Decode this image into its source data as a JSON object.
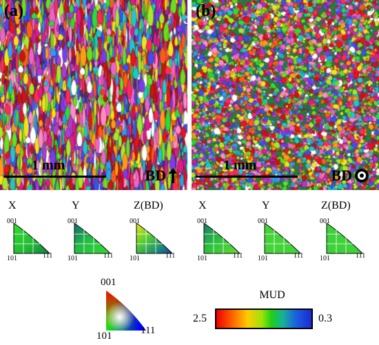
{
  "panels": [
    {
      "label": "(a)",
      "scale": "1 mm",
      "bd": "BD"
    },
    {
      "label": "(b)",
      "scale": "1 mm",
      "bd": "BD"
    }
  ],
  "pole_figures": [
    {
      "title": "X",
      "corner_001": "001",
      "corner_101": "101",
      "corner_111": "111"
    },
    {
      "title": "Y",
      "corner_001": "001",
      "corner_101": "101",
      "corner_111": "111"
    },
    {
      "title": "Z(BD)",
      "corner_001": "001",
      "corner_101": "101",
      "corner_111": "111"
    },
    {
      "title": "X",
      "corner_001": "001",
      "corner_101": "101",
      "corner_111": "111"
    },
    {
      "title": "Y",
      "corner_001": "001",
      "corner_101": "101",
      "corner_111": "111"
    },
    {
      "title": "Z(BD)",
      "corner_001": "001",
      "corner_101": "101",
      "corner_111": "111"
    }
  ],
  "ipf_key": {
    "corner_001": "001",
    "corner_101": "101",
    "corner_111": "111"
  },
  "mud_legend": {
    "title": "MUD",
    "min": "2.5",
    "max": "0.3"
  },
  "colors": {
    "background": "#ffffff",
    "ipf_red": "#ee1111",
    "ipf_green": "#22cc22",
    "ipf_blue": "#3344ee",
    "mud_low": "#ee0000",
    "mud_mid": "#1ecf17",
    "mud_high": "#1b2bd0"
  }
}
